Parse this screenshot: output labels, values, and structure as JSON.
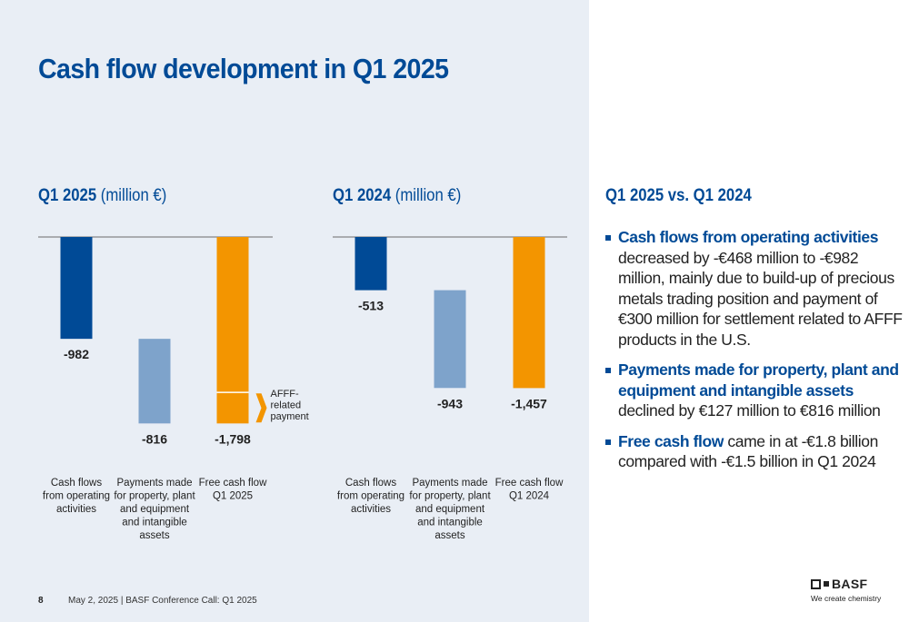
{
  "page": {
    "title": "Cash flow development in Q1 2025",
    "page_number": "8",
    "footer": "May 2, 2025  |  BASF Conference Call: Q1 2025"
  },
  "colors": {
    "brand_blue": "#004a96",
    "light_blue": "#7ea3cb",
    "orange": "#f39500",
    "background": "#e9eef5"
  },
  "charts_text": [
    {
      "head_bold": "Q1 2025",
      "head_unit": " (million €)"
    },
    {
      "head_bold": "Q1 2024",
      "head_unit": " (million €)"
    }
  ],
  "chart_data": [
    {
      "type": "bar",
      "title": "Q1 2025 (million €)",
      "categories": [
        "Cash flows from operating activities",
        "Payments made for property, plant and equipment and intangible assets",
        "Free cash flow Q1 2025"
      ],
      "category_lines": [
        [
          "Cash flows",
          "from operating",
          "activities"
        ],
        [
          "Payments made",
          "for property, plant",
          "and equipment",
          "and intangible",
          "assets"
        ],
        [
          "Free cash flow",
          "Q1 2025"
        ]
      ],
      "values": [
        -982,
        -816,
        -1798
      ],
      "labels": [
        "-982",
        "-816",
        "-1,798"
      ],
      "bar_start": [
        0,
        -982,
        0
      ],
      "colors": [
        "#004a96",
        "#7ea3cb",
        "#f39500"
      ],
      "annotation": {
        "lines": [
          "AFFF-",
          "related",
          "payment"
        ],
        "value": -300
      }
    },
    {
      "type": "bar",
      "title": "Q1 2024 (million €)",
      "categories": [
        "Cash flows from operating activities",
        "Payments made for property, plant and equipment and intangible assets",
        "Free cash flow Q1 2024"
      ],
      "category_lines": [
        [
          "Cash flows",
          "from operating",
          "activities"
        ],
        [
          "Payments made",
          "for property, plant",
          "and equipment",
          "and intangible",
          "assets"
        ],
        [
          "Free cash flow",
          "Q1 2024"
        ]
      ],
      "values": [
        -513,
        -943,
        -1457
      ],
      "labels": [
        "-513",
        "-943",
        "-1,457"
      ],
      "bar_start": [
        0,
        -513,
        0
      ],
      "colors": [
        "#004a96",
        "#7ea3cb",
        "#f39500"
      ]
    }
  ],
  "right_panel": {
    "heading": "Q1 2025 vs. Q1 2024",
    "bullets": [
      {
        "bold": "Cash flows from operating activities",
        "text": " decreased by -€468 million to -€982 million, mainly due to build-up of precious metals trading position and payment of €300 million for settlement related to AFFF products in the U.S."
      },
      {
        "bold": "Payments made for property, plant and equipment and intangible assets",
        "text": " declined by €127 million to €816 million"
      },
      {
        "bold": "Free cash flow",
        "text": " came in at -€1.8 billion compared with -€1.5 billion in Q1 2024"
      }
    ]
  },
  "logo": {
    "word": "BASF",
    "tagline": "We create chemistry"
  }
}
